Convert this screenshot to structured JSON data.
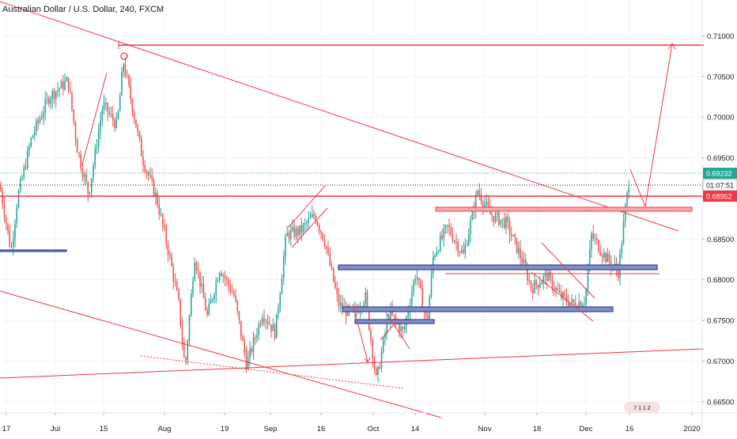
{
  "chart_data": {
    "type": "candlestick",
    "title": "Australian Dollar / U.S. Dollar, 240, FXCM",
    "x_tick_labels": [
      "17",
      "Jul",
      "15",
      "Aug",
      "19",
      "Sep",
      "16",
      "Oct",
      "14",
      "Nov",
      "18",
      "Dec",
      "16",
      "2020"
    ],
    "y_ticks": [
      "0.71000",
      "0.70500",
      "0.70000",
      "0.69500",
      "0.69000",
      "0.68500",
      "0.68000",
      "0.67500",
      "0.67000",
      "0.66500"
    ],
    "ylim": [
      0.6643,
      0.7115
    ],
    "price_labels": {
      "last_price": "0.69232",
      "countdown": "01:07:51",
      "resistance": "0.68962"
    },
    "colors": {
      "up": "#26a69a",
      "down": "#ef5350",
      "drawing_red": "#f23645",
      "zone_fill": "#7e8fc7",
      "zone_border": "#1e2b86",
      "price_line": "#26a69a",
      "resistance_label": "#f23645",
      "countdown_label": "#131722"
    },
    "grid": true,
    "watermark": "TradingView"
  }
}
